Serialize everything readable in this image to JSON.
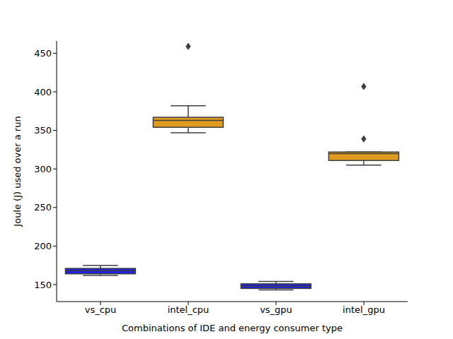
{
  "chart_data": {
    "type": "box",
    "x_label": "Combinations of IDE and energy consumer type",
    "y_label": "Joule (J) used over a run",
    "categories": [
      "vs_cpu",
      "intel_cpu",
      "vs_gpu",
      "intel_gpu"
    ],
    "whislo": [
      162,
      347,
      143,
      305
    ],
    "q1": [
      164,
      354,
      145,
      311
    ],
    "median": [
      168,
      363,
      148,
      320
    ],
    "q3": [
      171,
      367,
      151,
      322
    ],
    "whishi": [
      175,
      382,
      154,
      322
    ],
    "outliers": [
      [],
      [
        459
      ],
      [],
      [
        339,
        407
      ]
    ],
    "colors": [
      "#2020df",
      "#df9c20",
      "#2020df",
      "#df9c20"
    ],
    "ylim": [
      128,
      466
    ],
    "yticks": [
      150,
      200,
      250,
      300,
      350,
      400,
      450
    ],
    "marker": "diamond"
  }
}
